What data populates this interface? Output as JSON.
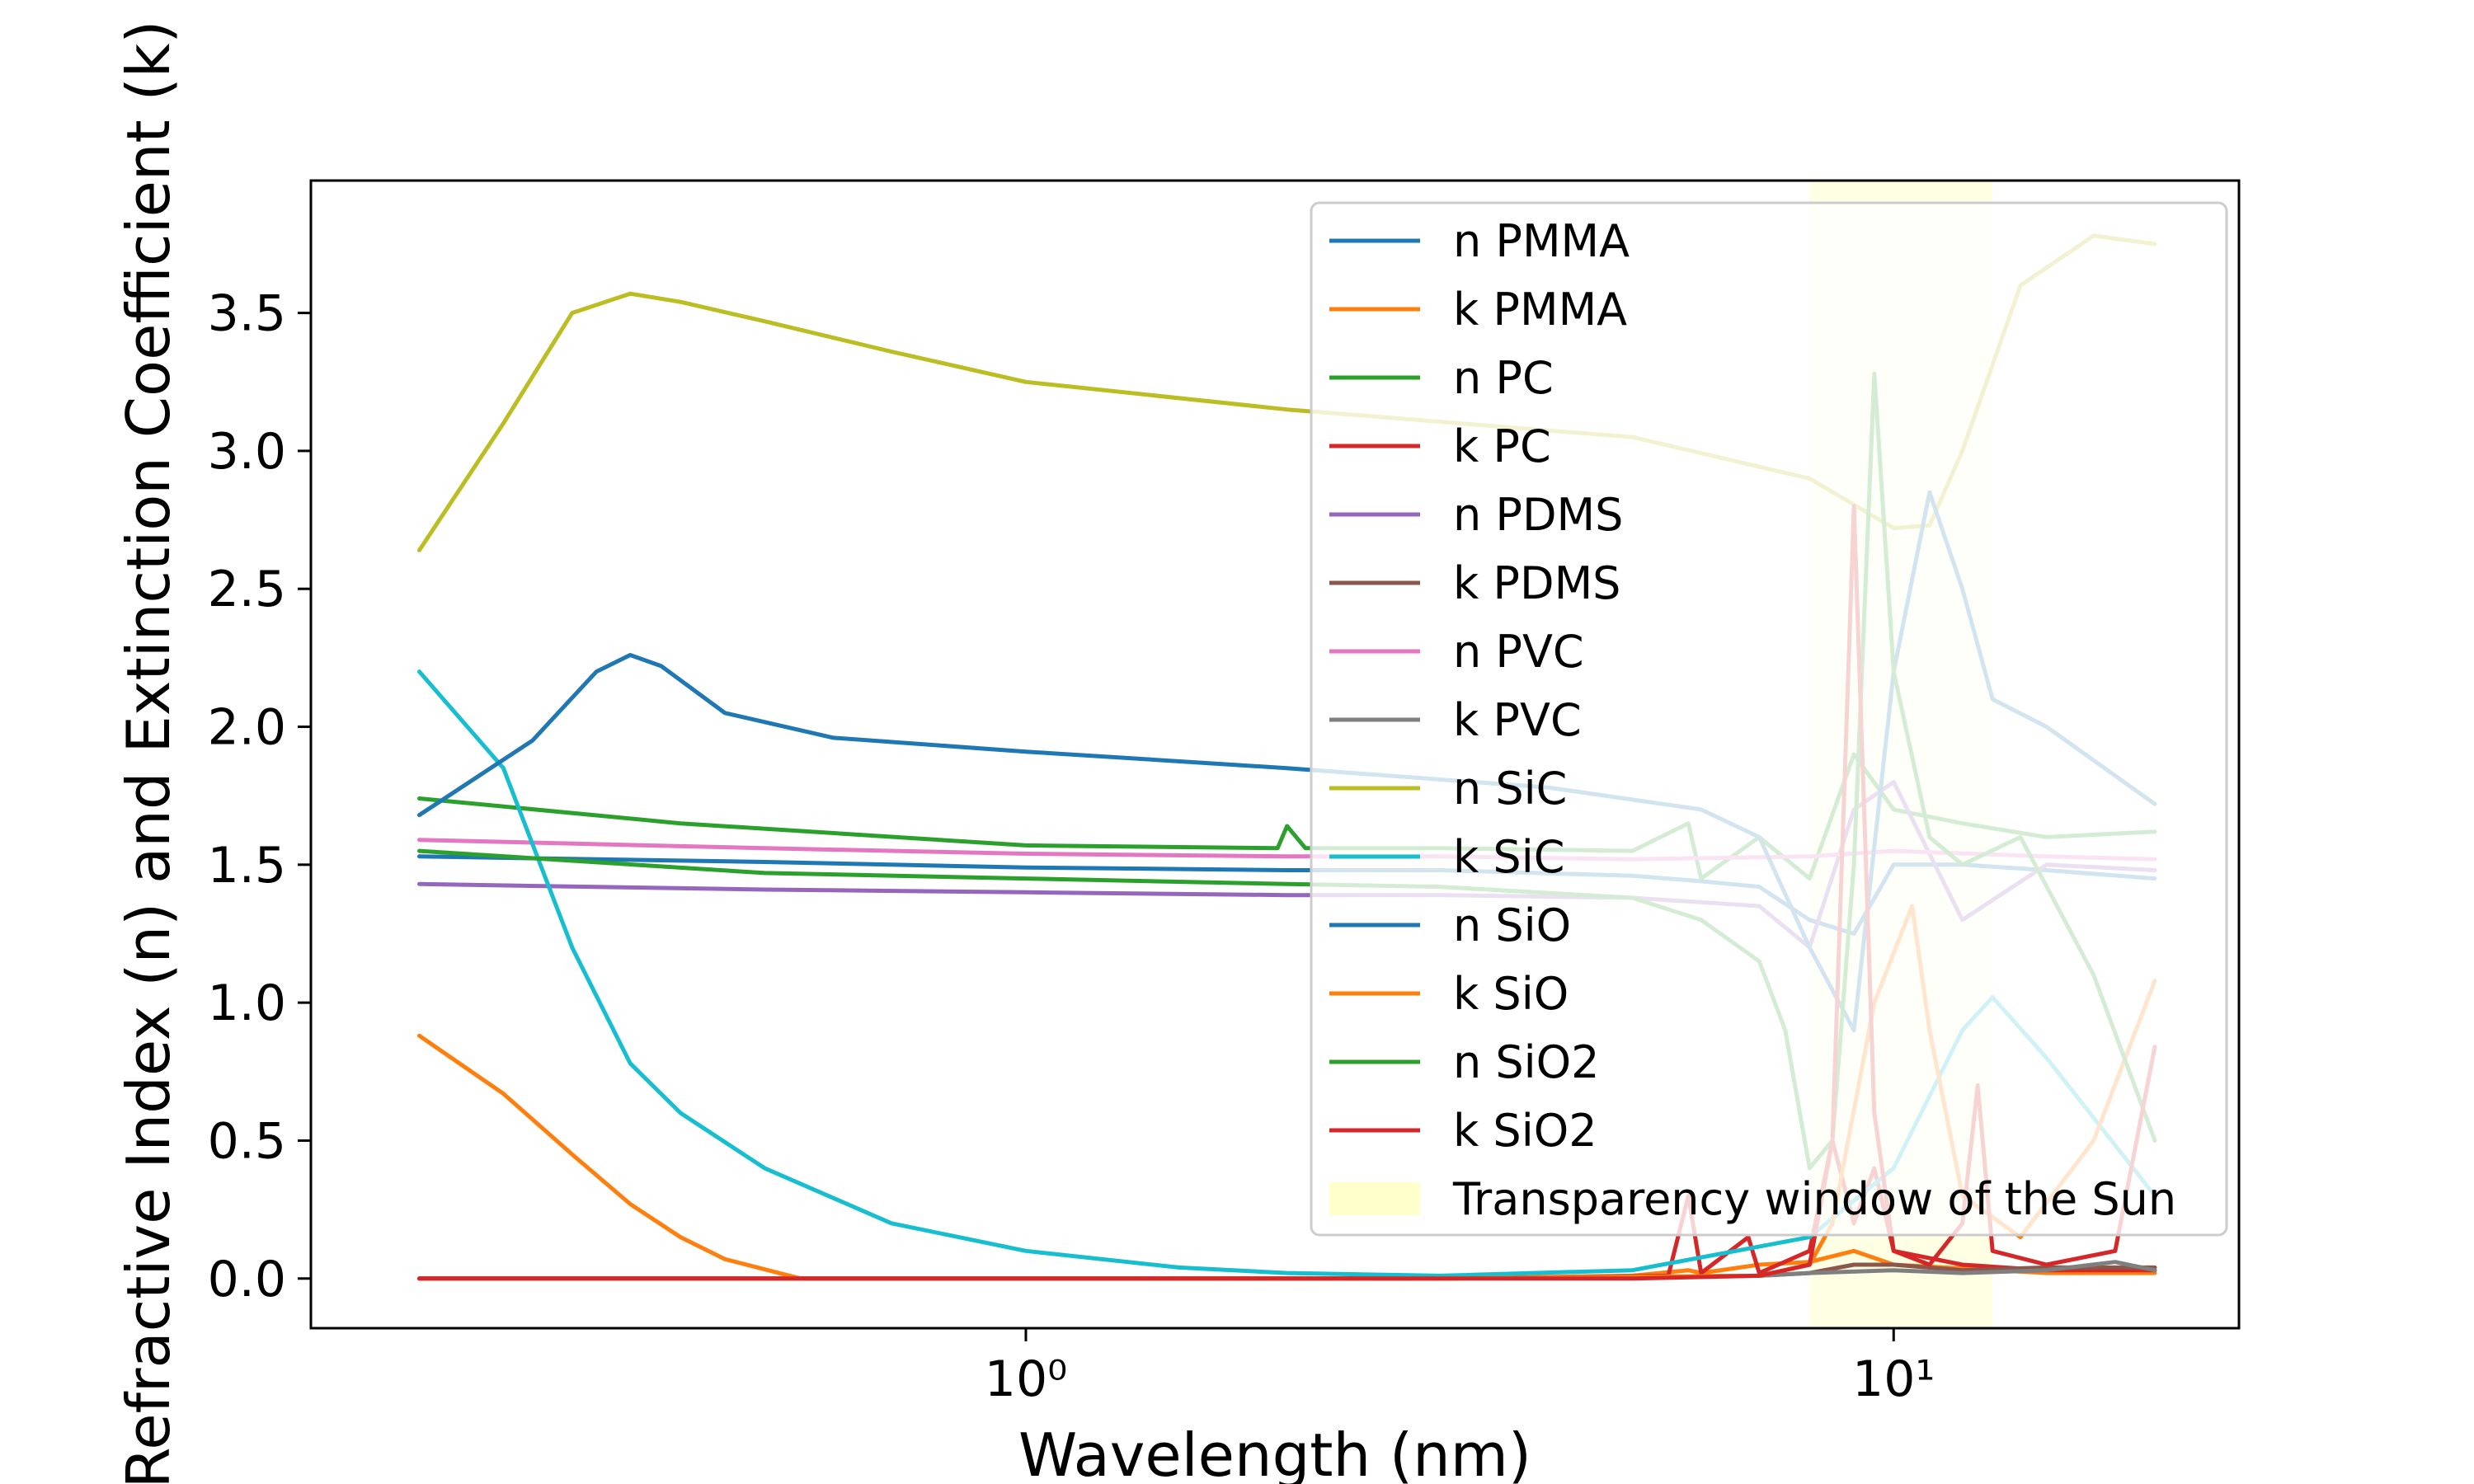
{
  "chart_data": {
    "type": "line",
    "title": "",
    "xlabel": "Wavelength (nm)",
    "ylabel": "Refractive Index (n) and Extinction Coefficient (k)",
    "xscale": "log",
    "xlim": [
      0.15,
      25
    ],
    "ylim": [
      -0.18,
      3.98
    ],
    "grid": false,
    "legend_position": "upper-right",
    "x_ticks": [
      {
        "value": 1,
        "label": "10⁰"
      },
      {
        "value": 10,
        "label": "10¹"
      }
    ],
    "y_ticks": [
      {
        "value": 0.0,
        "label": "0.0"
      },
      {
        "value": 0.5,
        "label": "0.5"
      },
      {
        "value": 1.0,
        "label": "1.0"
      },
      {
        "value": 1.5,
        "label": "1.5"
      },
      {
        "value": 2.0,
        "label": "2.0"
      },
      {
        "value": 2.5,
        "label": "2.5"
      },
      {
        "value": 3.0,
        "label": "3.0"
      },
      {
        "value": 3.5,
        "label": "3.5"
      }
    ],
    "shaded_region": {
      "name": "Transparency window of the Sun",
      "x": [
        8,
        13
      ],
      "color": "#ffffcc"
    },
    "series": [
      {
        "name": "n PMMA",
        "color": "#1f77b4",
        "x": [
          0.2,
          0.5,
          1,
          2,
          3,
          5,
          6,
          7,
          8,
          9,
          10,
          12,
          15,
          20
        ],
        "y": [
          1.53,
          1.51,
          1.49,
          1.48,
          1.48,
          1.46,
          1.44,
          1.42,
          1.3,
          1.25,
          1.5,
          1.5,
          1.48,
          1.45
        ]
      },
      {
        "name": "k PMMA",
        "color": "#ff7f0e",
        "x": [
          0.2,
          1,
          3,
          5,
          5.8,
          6,
          7,
          8,
          9,
          10,
          15,
          20
        ],
        "y": [
          0.0,
          0.0,
          0.0,
          0.01,
          0.03,
          0.02,
          0.05,
          0.06,
          0.1,
          0.05,
          0.02,
          0.02
        ]
      },
      {
        "name": "n PC",
        "color": "#2ca02c",
        "x": [
          0.2,
          0.4,
          1,
          1.95,
          2,
          2.1,
          3,
          5,
          5.8,
          6,
          7,
          8,
          9,
          10,
          12,
          15,
          20
        ],
        "y": [
          1.74,
          1.65,
          1.57,
          1.56,
          1.64,
          1.56,
          1.56,
          1.55,
          1.65,
          1.45,
          1.6,
          1.45,
          1.9,
          1.7,
          1.65,
          1.6,
          1.62
        ]
      },
      {
        "name": "k PC",
        "color": "#d62728",
        "x": [
          0.2,
          1,
          3,
          5.5,
          5.8,
          6,
          6.8,
          7,
          8,
          8.5,
          9,
          9.5,
          10,
          12,
          15,
          20
        ],
        "y": [
          0.0,
          0.0,
          0.0,
          0.01,
          0.3,
          0.02,
          0.15,
          0.02,
          0.1,
          0.5,
          0.2,
          0.4,
          0.1,
          0.05,
          0.03,
          0.03
        ]
      },
      {
        "name": "n PDMS",
        "color": "#9467bd",
        "x": [
          0.2,
          0.5,
          1,
          2,
          3,
          5,
          7,
          8,
          9,
          10,
          12,
          15,
          20
        ],
        "y": [
          1.43,
          1.41,
          1.4,
          1.39,
          1.39,
          1.38,
          1.35,
          1.2,
          1.7,
          1.8,
          1.3,
          1.5,
          1.48
        ]
      },
      {
        "name": "k PDMS",
        "color": "#8c564b",
        "x": [
          0.2,
          1,
          3,
          7,
          8,
          9,
          10,
          12,
          15,
          20
        ],
        "y": [
          0.0,
          0.0,
          0.0,
          0.01,
          0.02,
          0.05,
          0.05,
          0.03,
          0.04,
          0.04
        ]
      },
      {
        "name": "n PVC",
        "color": "#e377c2",
        "x": [
          0.2,
          0.5,
          1,
          2,
          3,
          5,
          8,
          10,
          15,
          20
        ],
        "y": [
          1.59,
          1.56,
          1.54,
          1.53,
          1.53,
          1.52,
          1.53,
          1.55,
          1.53,
          1.52
        ]
      },
      {
        "name": "k PVC",
        "color": "#7f7f7f",
        "x": [
          0.2,
          1,
          3,
          7,
          8,
          10,
          12,
          15,
          18,
          20
        ],
        "y": [
          0.0,
          0.0,
          0.0,
          0.01,
          0.02,
          0.03,
          0.02,
          0.03,
          0.06,
          0.03
        ]
      },
      {
        "name": "n SiC",
        "color": "#bcbd22",
        "x": [
          0.2,
          0.25,
          0.3,
          0.35,
          0.4,
          0.5,
          0.7,
          1,
          2,
          5,
          8,
          10,
          11,
          12,
          14,
          17,
          20
        ],
        "y": [
          2.64,
          3.1,
          3.5,
          3.57,
          3.54,
          3.47,
          3.36,
          3.25,
          3.15,
          3.05,
          2.9,
          2.72,
          2.73,
          3.0,
          3.6,
          3.78,
          3.75
        ]
      },
      {
        "name": "k SiC",
        "color": "#17becf",
        "x": [
          0.2,
          0.25,
          0.3,
          0.35,
          0.4,
          0.5,
          0.7,
          1,
          1.5,
          2,
          3,
          5,
          8,
          10,
          12,
          13,
          15,
          20
        ],
        "y": [
          2.2,
          1.85,
          1.2,
          0.78,
          0.6,
          0.4,
          0.2,
          0.1,
          0.04,
          0.02,
          0.01,
          0.03,
          0.15,
          0.4,
          0.9,
          1.02,
          0.8,
          0.3
        ]
      },
      {
        "name": "n SiO",
        "color": "#1f77b4",
        "x": [
          0.2,
          0.27,
          0.32,
          0.35,
          0.38,
          0.45,
          0.6,
          1,
          2,
          4,
          6,
          7,
          8,
          9,
          10,
          11,
          12,
          13,
          15,
          20
        ],
        "y": [
          1.68,
          1.95,
          2.2,
          2.26,
          2.22,
          2.05,
          1.96,
          1.91,
          1.85,
          1.78,
          1.7,
          1.6,
          1.2,
          0.9,
          2.2,
          2.85,
          2.5,
          2.1,
          2.0,
          1.72
        ]
      },
      {
        "name": "k SiO",
        "color": "#ff7f0e",
        "x": [
          0.2,
          0.25,
          0.3,
          0.35,
          0.4,
          0.45,
          0.55,
          1,
          3,
          7,
          8,
          8.5,
          9.5,
          10.5,
          11,
          12,
          14,
          17,
          20
        ],
        "y": [
          0.88,
          0.67,
          0.45,
          0.27,
          0.15,
          0.07,
          0.0,
          0.0,
          0.0,
          0.01,
          0.05,
          0.2,
          1.0,
          1.35,
          0.9,
          0.3,
          0.15,
          0.5,
          1.08
        ]
      },
      {
        "name": "n SiO2",
        "color": "#2ca02c",
        "x": [
          0.2,
          0.5,
          1,
          2,
          3,
          5,
          6,
          7,
          7.5,
          8,
          8.5,
          9,
          9.5,
          10,
          11,
          12,
          14,
          17,
          20
        ],
        "y": [
          1.55,
          1.47,
          1.45,
          1.43,
          1.42,
          1.38,
          1.3,
          1.15,
          0.9,
          0.4,
          0.5,
          1.5,
          3.28,
          2.2,
          1.6,
          1.5,
          1.6,
          1.1,
          0.5
        ]
      },
      {
        "name": "k SiO2",
        "color": "#d62728",
        "x": [
          0.2,
          1,
          3,
          5,
          7,
          8,
          8.5,
          9,
          9.5,
          10,
          11,
          12,
          12.5,
          13,
          15,
          18,
          20
        ],
        "y": [
          0.0,
          0.0,
          0.0,
          0.0,
          0.01,
          0.05,
          0.5,
          2.8,
          0.6,
          0.1,
          0.05,
          0.2,
          0.7,
          0.1,
          0.05,
          0.1,
          0.84
        ]
      }
    ]
  }
}
